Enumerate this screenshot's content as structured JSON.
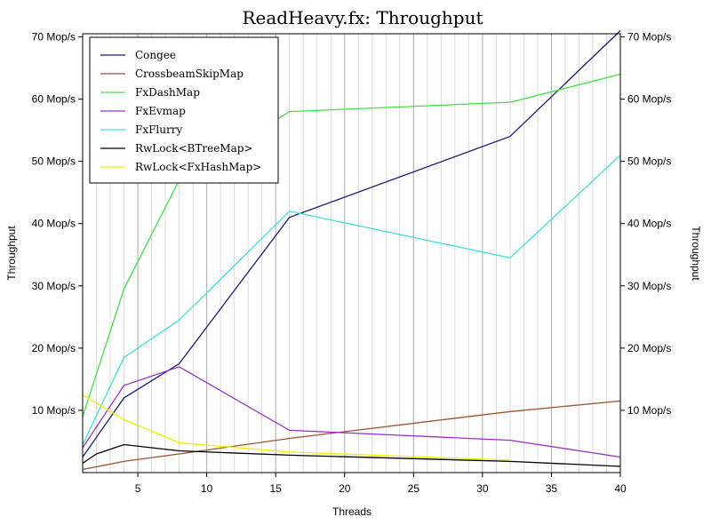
{
  "chart_data": {
    "type": "line",
    "title": "ReadHeavy.fx: Throughput",
    "xlabel": "Threads",
    "ylabel": "Throughput",
    "y2label": "Throughput",
    "xlim": [
      1,
      40
    ],
    "ylim": [
      0,
      70.5
    ],
    "xticks": [
      5,
      10,
      15,
      20,
      25,
      30,
      35,
      40
    ],
    "yticks": [
      {
        "value": 10,
        "label": "10 Mop/s"
      },
      {
        "value": 20,
        "label": "20 Mop/s"
      },
      {
        "value": 30,
        "label": "30 Mop/s"
      },
      {
        "value": 40,
        "label": "40 Mop/s"
      },
      {
        "value": 50,
        "label": "50 Mop/s"
      },
      {
        "value": 60,
        "label": "60 Mop/s"
      },
      {
        "value": 70,
        "label": "70 Mop/s"
      }
    ],
    "grid": true,
    "legend_position": "top-left",
    "series": [
      {
        "name": "Congee",
        "color": "#1b1b7a",
        "x": [
          1,
          4,
          8,
          16,
          32,
          40
        ],
        "y": [
          2.5,
          12,
          17.5,
          41,
          54,
          71
        ]
      },
      {
        "name": "CrossbeamSkipMap",
        "color": "#a0522d",
        "x": [
          1,
          4,
          8,
          16,
          32,
          40
        ],
        "y": [
          0.5,
          1.8,
          3,
          5.5,
          9.8,
          11.5
        ]
      },
      {
        "name": "FxDashMap",
        "color": "#44e044",
        "x": [
          1,
          4,
          8,
          16,
          32,
          40
        ],
        "y": [
          9,
          29.5,
          47,
          58,
          59.5,
          64
        ]
      },
      {
        "name": "FxEvmap",
        "color": "#9932cc",
        "x": [
          1,
          4,
          8,
          16,
          32,
          40
        ],
        "y": [
          4,
          14,
          17,
          6.8,
          5.2,
          2.5
        ]
      },
      {
        "name": "FxFlurry",
        "color": "#40e0e0",
        "x": [
          1,
          4,
          8,
          16,
          32,
          40
        ],
        "y": [
          4.5,
          18.5,
          24.5,
          42,
          34.5,
          51
        ]
      },
      {
        "name": "RwLock<BTreeMap>",
        "color": "#000000",
        "x": [
          1,
          2,
          4,
          8,
          16,
          32,
          40
        ],
        "y": [
          1.5,
          3,
          4.5,
          3.5,
          2.8,
          1.8,
          1
        ]
      },
      {
        "name": "RwLock<FxHashMap>",
        "color": "#f0f000",
        "x": [
          1,
          4,
          8,
          16,
          32
        ],
        "y": [
          12.5,
          8.5,
          4.8,
          3.3,
          2
        ]
      }
    ]
  }
}
